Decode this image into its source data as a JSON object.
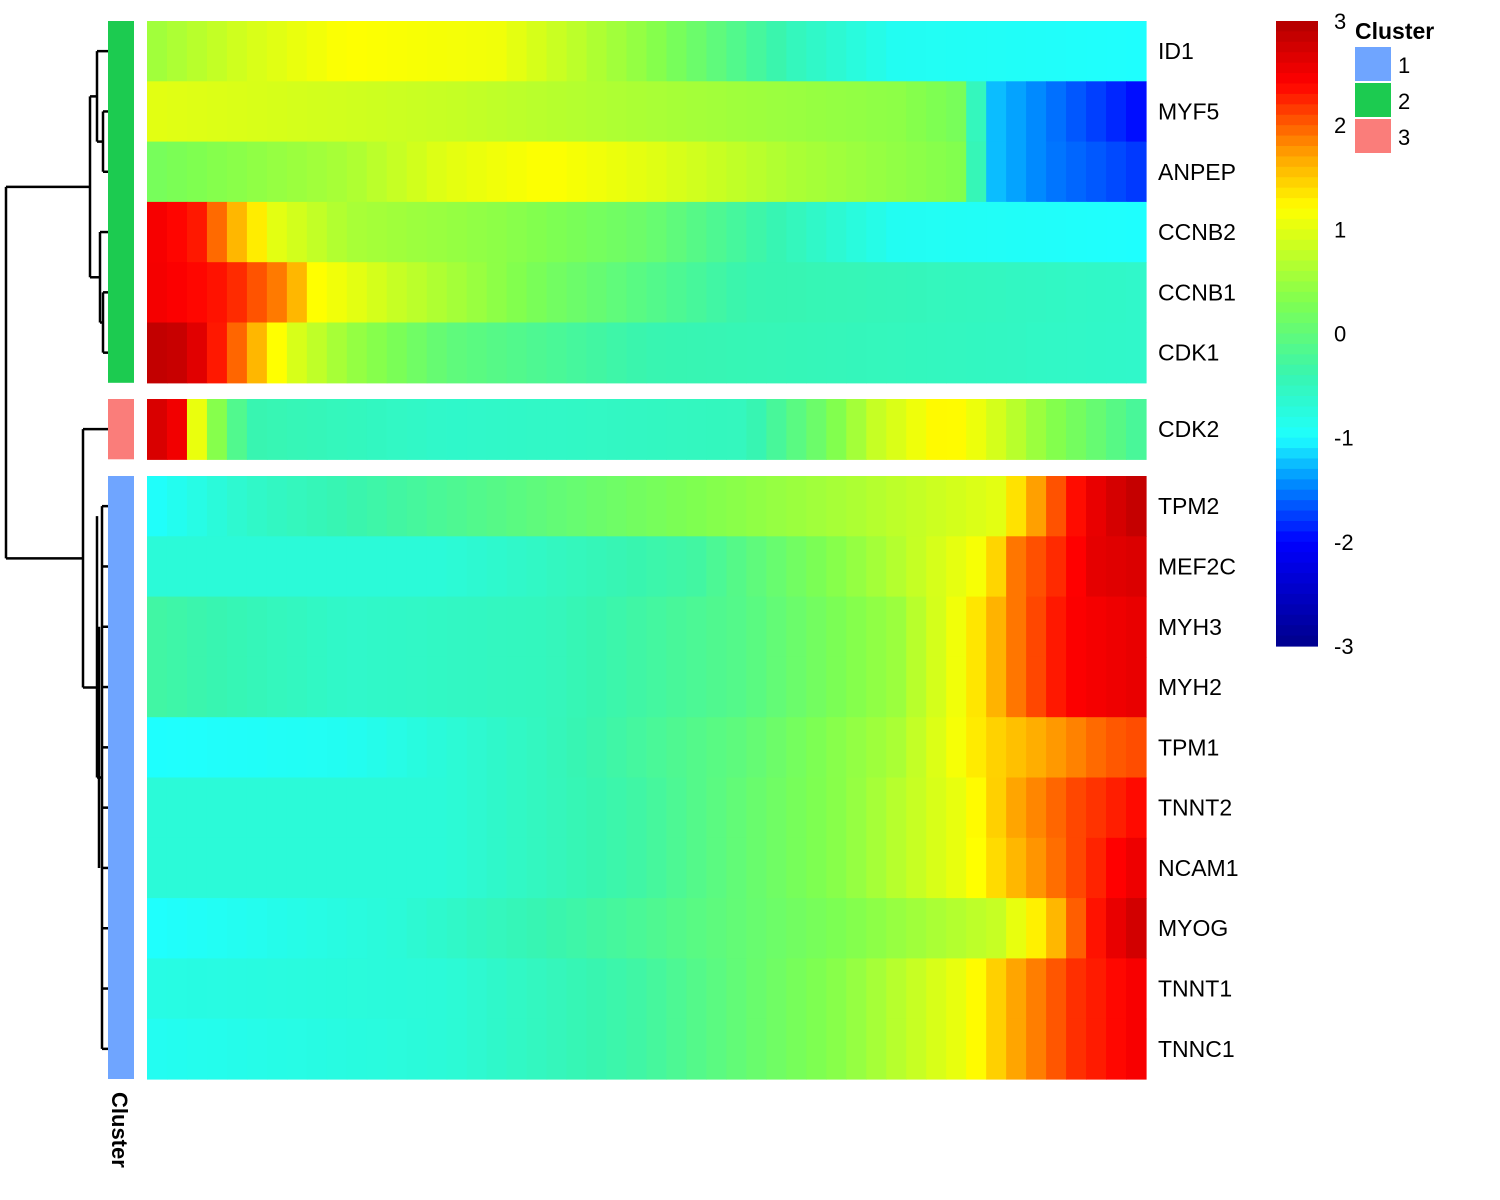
{
  "chart_data": {
    "type": "heatmap",
    "title": "",
    "xlabel": "",
    "ylabel": "",
    "colorbar": {
      "ticks": [
        3,
        2,
        1,
        0,
        -1,
        -2,
        -3
      ],
      "range": [
        -3,
        3
      ],
      "colors": [
        "#00008B",
        "#0000FF",
        "#00BFFF",
        "#1EFFFF",
        "#38F5B0",
        "#7FFF50",
        "#FFFF00",
        "#FFA500",
        "#FF0000",
        "#B20000"
      ]
    },
    "annotation": {
      "title": "Cluster",
      "legend": [
        {
          "label": "1",
          "color": "#6FA5FF"
        },
        {
          "label": "2",
          "color": "#1CCB50"
        },
        {
          "label": "3",
          "color": "#FA7D7A"
        }
      ]
    },
    "columns": 50,
    "groups": [
      {
        "cluster": "2",
        "rows": [
          {
            "gene": "ID1",
            "profile": [
              [
                0,
                0.5
              ],
              [
                0.1,
                0.9
              ],
              [
                0.2,
                1.2
              ],
              [
                0.35,
                1.1
              ],
              [
                0.5,
                0.4
              ],
              [
                0.65,
                -0.5
              ],
              [
                0.75,
                -0.9
              ],
              [
                1,
                -1.0
              ]
            ]
          },
          {
            "gene": "MYF5",
            "profile": [
              [
                0,
                1.0
              ],
              [
                0.3,
                0.8
              ],
              [
                0.5,
                0.6
              ],
              [
                0.75,
                0.4
              ],
              [
                0.82,
                0.2
              ],
              [
                0.84,
                -1.2
              ],
              [
                0.9,
                -1.5
              ],
              [
                1,
                -2.0
              ]
            ]
          },
          {
            "gene": "ANPEP",
            "profile": [
              [
                0,
                0.2
              ],
              [
                0.2,
                0.6
              ],
              [
                0.3,
                1.0
              ],
              [
                0.4,
                1.2
              ],
              [
                0.5,
                1.0
              ],
              [
                0.65,
                0.6
              ],
              [
                0.82,
                0.3
              ],
              [
                0.84,
                -1.2
              ],
              [
                0.9,
                -1.5
              ],
              [
                1,
                -1.8
              ]
            ]
          },
          {
            "gene": "CCNB2",
            "profile": [
              [
                0,
                2.5
              ],
              [
                0.05,
                2.3
              ],
              [
                0.09,
                1.6
              ],
              [
                0.13,
                1.0
              ],
              [
                0.2,
                0.6
              ],
              [
                0.35,
                0.4
              ],
              [
                0.5,
                0.1
              ],
              [
                0.75,
                -0.9
              ],
              [
                1,
                -1.0
              ]
            ]
          },
          {
            "gene": "CCNB1",
            "profile": [
              [
                0,
                2.5
              ],
              [
                0.08,
                2.3
              ],
              [
                0.14,
                1.8
              ],
              [
                0.17,
                1.2
              ],
              [
                0.25,
                0.8
              ],
              [
                0.4,
                0.2
              ],
              [
                0.6,
                -0.4
              ],
              [
                1,
                -0.6
              ]
            ]
          },
          {
            "gene": "CDK1",
            "profile": [
              [
                0,
                2.9
              ],
              [
                0.04,
                2.8
              ],
              [
                0.07,
                2.3
              ],
              [
                0.1,
                1.8
              ],
              [
                0.14,
                1.0
              ],
              [
                0.2,
                0.5
              ],
              [
                0.3,
                0.0
              ],
              [
                0.5,
                -0.4
              ],
              [
                1,
                -0.6
              ]
            ]
          }
        ]
      },
      {
        "cluster": "3",
        "rows": [
          {
            "gene": "CDK2",
            "profile": [
              [
                0,
                2.8
              ],
              [
                0.03,
                2.5
              ],
              [
                0.04,
                1.5
              ],
              [
                0.06,
                0.6
              ],
              [
                0.1,
                -0.4
              ],
              [
                0.3,
                -0.6
              ],
              [
                0.6,
                -0.5
              ],
              [
                0.68,
                0.2
              ],
              [
                0.73,
                0.8
              ],
              [
                0.8,
                1.3
              ],
              [
                0.84,
                1.0
              ],
              [
                0.9,
                0.4
              ],
              [
                1,
                -0.3
              ]
            ]
          }
        ]
      },
      {
        "cluster": "1",
        "rows": [
          {
            "gene": "TPM2",
            "profile": [
              [
                0,
                -1.0
              ],
              [
                0.1,
                -0.6
              ],
              [
                0.3,
                -0.2
              ],
              [
                0.5,
                0.2
              ],
              [
                0.7,
                0.6
              ],
              [
                0.85,
                1.0
              ],
              [
                0.9,
                1.9
              ],
              [
                0.94,
                2.5
              ],
              [
                0.98,
                2.8
              ],
              [
                1,
                2.9
              ]
            ]
          },
          {
            "gene": "MEF2C",
            "profile": [
              [
                0,
                -0.7
              ],
              [
                0.3,
                -0.7
              ],
              [
                0.55,
                -0.3
              ],
              [
                0.72,
                0.5
              ],
              [
                0.84,
                1.2
              ],
              [
                0.87,
                1.9
              ],
              [
                0.92,
                2.3
              ],
              [
                0.95,
                2.6
              ],
              [
                1,
                2.7
              ]
            ]
          },
          {
            "gene": "MYH3",
            "profile": [
              [
                0,
                -0.3
              ],
              [
                0.2,
                -0.6
              ],
              [
                0.4,
                -0.5
              ],
              [
                0.6,
                -0.1
              ],
              [
                0.75,
                0.5
              ],
              [
                0.82,
                1.2
              ],
              [
                0.87,
                1.9
              ],
              [
                0.92,
                2.4
              ],
              [
                1,
                2.6
              ]
            ]
          },
          {
            "gene": "MYH2",
            "profile": [
              [
                0,
                -0.3
              ],
              [
                0.2,
                -0.6
              ],
              [
                0.4,
                -0.5
              ],
              [
                0.6,
                -0.1
              ],
              [
                0.75,
                0.5
              ],
              [
                0.82,
                1.2
              ],
              [
                0.87,
                1.9
              ],
              [
                0.92,
                2.4
              ],
              [
                1,
                2.6
              ]
            ]
          },
          {
            "gene": "TPM1",
            "profile": [
              [
                0,
                -1.0
              ],
              [
                0.2,
                -0.9
              ],
              [
                0.4,
                -0.5
              ],
              [
                0.6,
                0.0
              ],
              [
                0.75,
                0.6
              ],
              [
                0.84,
                1.4
              ],
              [
                0.9,
                1.7
              ],
              [
                0.96,
                2.0
              ],
              [
                1,
                2.1
              ]
            ]
          },
          {
            "gene": "TNNT2",
            "profile": [
              [
                0,
                -0.7
              ],
              [
                0.3,
                -0.7
              ],
              [
                0.5,
                -0.3
              ],
              [
                0.7,
                0.4
              ],
              [
                0.82,
                1.1
              ],
              [
                0.87,
                1.7
              ],
              [
                0.93,
                2.1
              ],
              [
                1,
                2.4
              ]
            ]
          },
          {
            "gene": "NCAM1",
            "profile": [
              [
                0,
                -0.7
              ],
              [
                0.3,
                -0.7
              ],
              [
                0.5,
                -0.3
              ],
              [
                0.7,
                0.4
              ],
              [
                0.82,
                1.1
              ],
              [
                0.87,
                1.6
              ],
              [
                0.93,
                2.1
              ],
              [
                0.97,
                2.4
              ],
              [
                1,
                2.6
              ]
            ]
          },
          {
            "gene": "MYOG",
            "profile": [
              [
                0,
                -1.0
              ],
              [
                0.25,
                -0.7
              ],
              [
                0.5,
                -0.2
              ],
              [
                0.7,
                0.3
              ],
              [
                0.85,
                0.8
              ],
              [
                0.9,
                1.4
              ],
              [
                0.94,
                2.2
              ],
              [
                0.98,
                2.7
              ],
              [
                1,
                2.8
              ]
            ]
          },
          {
            "gene": "TNNT1",
            "profile": [
              [
                0,
                -0.8
              ],
              [
                0.3,
                -0.7
              ],
              [
                0.5,
                -0.3
              ],
              [
                0.7,
                0.4
              ],
              [
                0.82,
                1.1
              ],
              [
                0.87,
                1.7
              ],
              [
                0.93,
                2.2
              ],
              [
                1,
                2.5
              ]
            ]
          },
          {
            "gene": "TNNC1",
            "profile": [
              [
                0,
                -0.9
              ],
              [
                0.3,
                -0.7
              ],
              [
                0.5,
                -0.3
              ],
              [
                0.7,
                0.4
              ],
              [
                0.82,
                1.1
              ],
              [
                0.87,
                1.7
              ],
              [
                0.93,
                2.2
              ],
              [
                1,
                2.5
              ]
            ]
          }
        ]
      }
    ]
  }
}
